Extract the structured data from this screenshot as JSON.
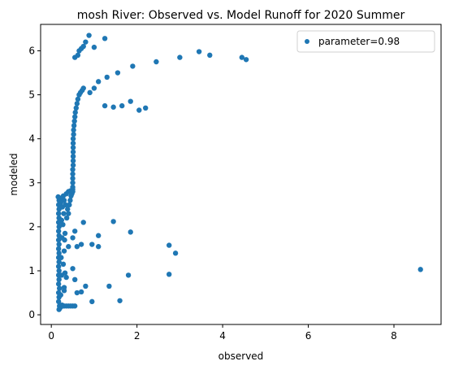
{
  "chart_data": {
    "type": "scatter",
    "title": "mosh River: Observed vs. Model Runoff for 2020 Summer",
    "xlabel": "observed",
    "ylabel": "modeled",
    "xlim": [
      -0.25,
      9.1
    ],
    "ylim": [
      -0.22,
      6.6
    ],
    "xticks": [
      0,
      2,
      4,
      6,
      8
    ],
    "yticks": [
      0,
      1,
      2,
      3,
      4,
      5,
      6
    ],
    "grid": false,
    "legend_position": "top-right",
    "marker_color": "#1f77b4",
    "series": [
      {
        "name": "parameter=0.98",
        "points": [
          [
            0.18,
            0.12
          ],
          [
            0.2,
            0.15
          ],
          [
            0.22,
            0.18
          ],
          [
            0.19,
            0.2
          ],
          [
            0.25,
            0.22
          ],
          [
            0.3,
            0.2
          ],
          [
            0.35,
            0.2
          ],
          [
            0.4,
            0.2
          ],
          [
            0.45,
            0.2
          ],
          [
            0.5,
            0.2
          ],
          [
            0.55,
            0.2
          ],
          [
            0.17,
            0.3
          ],
          [
            0.18,
            0.4
          ],
          [
            0.17,
            0.5
          ],
          [
            0.19,
            0.6
          ],
          [
            0.17,
            0.7
          ],
          [
            0.18,
            0.8
          ],
          [
            0.17,
            0.9
          ],
          [
            0.18,
            1.0
          ],
          [
            0.17,
            1.1
          ],
          [
            0.18,
            1.2
          ],
          [
            0.17,
            1.3
          ],
          [
            0.18,
            1.4
          ],
          [
            0.17,
            1.5
          ],
          [
            0.18,
            1.6
          ],
          [
            0.17,
            1.7
          ],
          [
            0.18,
            1.8
          ],
          [
            0.17,
            1.9
          ],
          [
            0.18,
            2.0
          ],
          [
            0.17,
            2.1
          ],
          [
            0.18,
            2.2
          ],
          [
            0.17,
            2.3
          ],
          [
            0.18,
            2.4
          ],
          [
            0.17,
            2.5
          ],
          [
            0.18,
            2.6
          ],
          [
            0.16,
            2.68
          ],
          [
            0.22,
            0.45
          ],
          [
            0.24,
            0.9
          ],
          [
            0.23,
            1.3
          ],
          [
            0.25,
            1.75
          ],
          [
            0.24,
            2.15
          ],
          [
            0.26,
            2.45
          ],
          [
            0.22,
            2.55
          ],
          [
            0.28,
            0.2
          ],
          [
            0.3,
            0.55
          ],
          [
            0.32,
            0.95
          ],
          [
            0.3,
            1.45
          ],
          [
            0.31,
            1.7
          ],
          [
            0.29,
            2.3
          ],
          [
            0.33,
            2.5
          ],
          [
            0.35,
            2.75
          ],
          [
            0.4,
            2.8
          ],
          [
            0.45,
            2.82
          ],
          [
            0.5,
            2.85
          ],
          [
            0.28,
            2.7
          ],
          [
            0.22,
            2.65
          ],
          [
            0.3,
            2.6
          ],
          [
            0.36,
            2.2
          ],
          [
            0.38,
            2.4
          ],
          [
            0.4,
            2.3
          ],
          [
            0.42,
            2.5
          ],
          [
            0.44,
            2.6
          ],
          [
            0.46,
            2.7
          ],
          [
            0.48,
            2.75
          ],
          [
            0.5,
            2.8
          ],
          [
            0.5,
            2.9
          ],
          [
            0.5,
            3.0
          ],
          [
            0.5,
            3.1
          ],
          [
            0.5,
            3.2
          ],
          [
            0.5,
            3.3
          ],
          [
            0.51,
            3.4
          ],
          [
            0.51,
            3.5
          ],
          [
            0.51,
            3.6
          ],
          [
            0.51,
            3.7
          ],
          [
            0.51,
            3.8
          ],
          [
            0.51,
            3.9
          ],
          [
            0.51,
            4.0
          ],
          [
            0.52,
            4.1
          ],
          [
            0.52,
            4.2
          ],
          [
            0.53,
            4.3
          ],
          [
            0.54,
            4.4
          ],
          [
            0.55,
            4.5
          ],
          [
            0.56,
            4.6
          ],
          [
            0.58,
            4.7
          ],
          [
            0.6,
            4.8
          ],
          [
            0.62,
            4.9
          ],
          [
            0.65,
            5.0
          ],
          [
            0.68,
            5.05
          ],
          [
            0.72,
            5.1
          ],
          [
            0.75,
            5.15
          ],
          [
            0.9,
            5.05
          ],
          [
            1.0,
            5.15
          ],
          [
            1.1,
            5.3
          ],
          [
            1.3,
            5.4
          ],
          [
            1.55,
            5.5
          ],
          [
            1.9,
            5.65
          ],
          [
            2.45,
            5.75
          ],
          [
            3.0,
            5.85
          ],
          [
            3.45,
            5.98
          ],
          [
            3.7,
            5.9
          ],
          [
            4.45,
            5.85
          ],
          [
            4.55,
            5.8
          ],
          [
            0.55,
            5.85
          ],
          [
            0.62,
            5.9
          ],
          [
            0.65,
            6.0
          ],
          [
            0.7,
            6.05
          ],
          [
            0.75,
            6.1
          ],
          [
            0.8,
            6.2
          ],
          [
            0.88,
            6.35
          ],
          [
            1.0,
            6.08
          ],
          [
            1.25,
            6.28
          ],
          [
            1.25,
            4.75
          ],
          [
            1.45,
            4.72
          ],
          [
            1.65,
            4.75
          ],
          [
            1.85,
            4.85
          ],
          [
            2.05,
            4.65
          ],
          [
            2.2,
            4.7
          ],
          [
            0.4,
            1.55
          ],
          [
            0.6,
            1.55
          ],
          [
            0.5,
            1.75
          ],
          [
            0.55,
            1.9
          ],
          [
            0.75,
            2.1
          ],
          [
            0.7,
            1.6
          ],
          [
            0.95,
            1.6
          ],
          [
            1.1,
            1.8
          ],
          [
            1.1,
            1.55
          ],
          [
            1.45,
            2.12
          ],
          [
            1.85,
            1.88
          ],
          [
            0.5,
            1.05
          ],
          [
            0.55,
            0.8
          ],
          [
            0.6,
            0.5
          ],
          [
            0.7,
            0.52
          ],
          [
            0.8,
            0.65
          ],
          [
            0.95,
            0.3
          ],
          [
            1.35,
            0.65
          ],
          [
            1.6,
            0.32
          ],
          [
            1.8,
            0.9
          ],
          [
            2.75,
            0.92
          ],
          [
            2.9,
            1.4
          ],
          [
            2.75,
            1.58
          ],
          [
            8.62,
            1.03
          ],
          [
            0.3,
            0.62
          ],
          [
            0.35,
            0.85
          ],
          [
            0.28,
            1.15
          ],
          [
            0.32,
            1.85
          ],
          [
            0.27,
            2.05
          ]
        ]
      }
    ]
  }
}
